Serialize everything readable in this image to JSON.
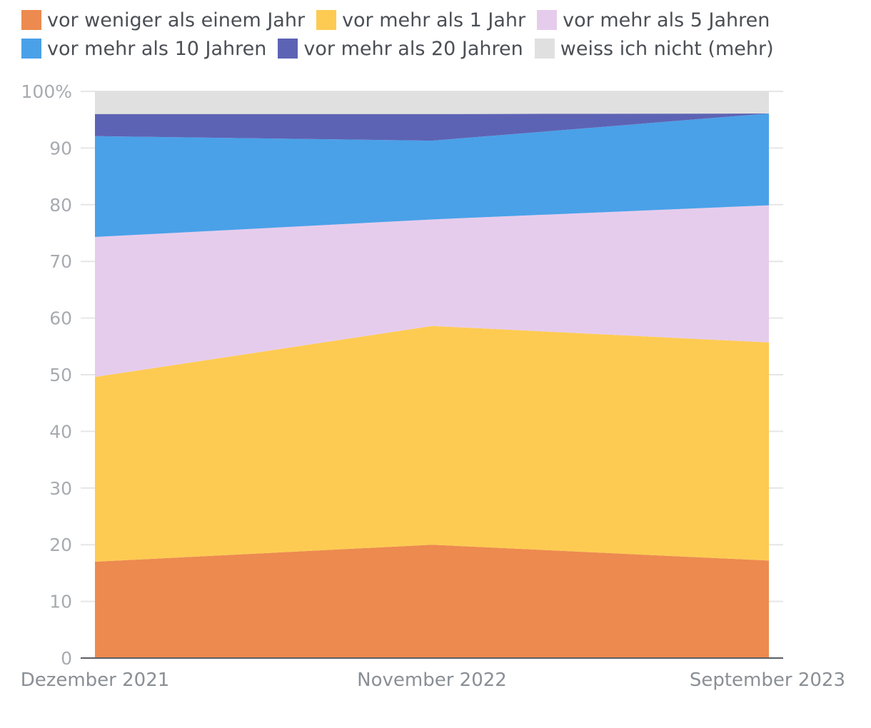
{
  "chart_data": {
    "type": "area",
    "stacked": true,
    "categories": [
      "Dezember 2021",
      "November 2022",
      "September 2023"
    ],
    "ylim": [
      0,
      100
    ],
    "yticks": [
      0,
      10,
      20,
      30,
      40,
      50,
      60,
      70,
      80,
      90,
      100
    ],
    "ytick_labels": [
      "0",
      "10",
      "20",
      "30",
      "40",
      "50",
      "60",
      "70",
      "80",
      "90",
      "100%"
    ],
    "grid": true,
    "legend_position": "top",
    "series": [
      {
        "name": "vor weniger als einem Jahr",
        "color": "#ed8a4f",
        "values": [
          17,
          20,
          17.2
        ]
      },
      {
        "name": "vor mehr als 1 Jahr",
        "color": "#fdcb52",
        "values": [
          32.6,
          38.6,
          38.5
        ]
      },
      {
        "name": "vor mehr als 5 Jahren",
        "color": "#e6ccec",
        "values": [
          24.7,
          18.8,
          24.2
        ]
      },
      {
        "name": "vor mehr als 10 Jahren",
        "color": "#4aa1e8",
        "values": [
          17.8,
          13.9,
          16.2
        ]
      },
      {
        "name": "vor mehr als 20 Jahren",
        "color": "#5d63b4",
        "values": [
          3.9,
          4.7,
          0
        ]
      },
      {
        "name": "weiss ich nicht (mehr)",
        "color": "#e0e0e0",
        "values": [
          4,
          4,
          3.9
        ]
      }
    ]
  }
}
